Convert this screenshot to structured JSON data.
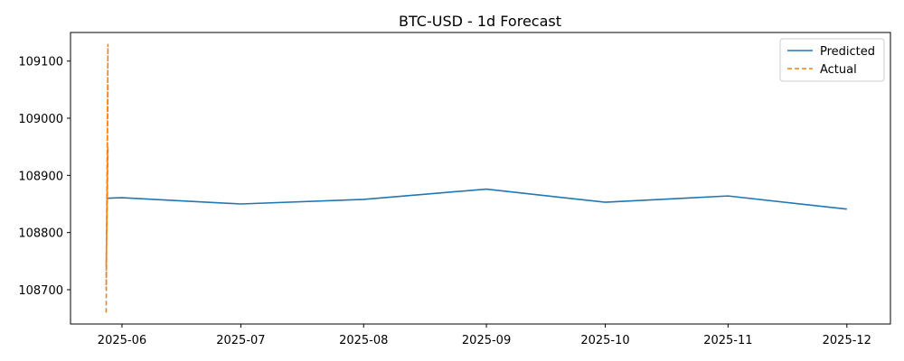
{
  "chart_data": {
    "type": "line",
    "title": "BTC-USD - 1d Forecast",
    "xlabel": "",
    "ylabel": "",
    "x_ticks": [
      "2025-06-01",
      "2025-07-01",
      "2025-08-01",
      "2025-09-01",
      "2025-10-01",
      "2025-11-01",
      "2025-12-01"
    ],
    "x_tick_labels": [
      "2025-06",
      "2025-07",
      "2025-08",
      "2025-09",
      "2025-10",
      "2025-11",
      "2025-12"
    ],
    "y_ticks": [
      108700,
      108800,
      108900,
      109000,
      109100
    ],
    "xlim": [
      "2025-05-19",
      "2025-12-12"
    ],
    "ylim": [
      108640,
      109150
    ],
    "grid": false,
    "legend": {
      "position": "top-right",
      "entries": [
        "Predicted",
        "Actual"
      ]
    },
    "series": [
      {
        "name": "Predicted",
        "style": "solid",
        "color": "#1f77b4",
        "points": [
          {
            "x": "2025-05-28",
            "y": 108860
          },
          {
            "x": "2025-06-01",
            "y": 108861
          },
          {
            "x": "2025-07-01",
            "y": 108850
          },
          {
            "x": "2025-08-01",
            "y": 108858
          },
          {
            "x": "2025-09-01",
            "y": 108876
          },
          {
            "x": "2025-10-01",
            "y": 108853
          },
          {
            "x": "2025-11-01",
            "y": 108864
          },
          {
            "x": "2025-12-01",
            "y": 108841
          }
        ]
      },
      {
        "name": "Actual",
        "style": "dashed",
        "color": "#ff7f0e",
        "points": [
          {
            "x": "2025-05-28",
            "y": 108660
          },
          {
            "x": "2025-05-28",
            "y": 109130
          },
          {
            "x": "2025-05-28",
            "y": 108700
          },
          {
            "x": "2025-05-28",
            "y": 109060
          },
          {
            "x": "2025-05-28",
            "y": 108740
          },
          {
            "x": "2025-05-28",
            "y": 108950
          },
          {
            "x": "2025-05-28",
            "y": 108720
          }
        ]
      }
    ]
  }
}
